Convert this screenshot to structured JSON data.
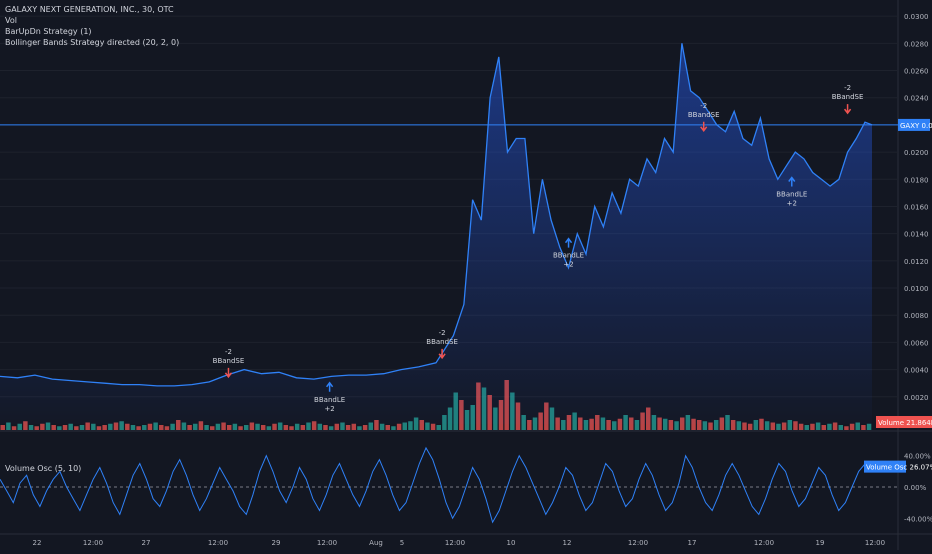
{
  "legend": {
    "symbol": "GALAXY NEXT GENERATION, INC., 30, OTC",
    "volume": "Vol",
    "strategy1": "BarUpDn Strategy (1)",
    "strategy2": "Bollinger Bands Strategy directed (20, 2, 0)"
  },
  "labels": {
    "last_price": "GAXY  0.0220",
    "volume_tag": "Volume  21.864M",
    "osc_tag": "Volume Osc  26.07%",
    "osc_title": "Volume Osc (5, 10)"
  },
  "colors": {
    "price_line": "#2f81f7",
    "up": "#26a69a",
    "down": "#ef5350",
    "background": "#131722",
    "grid": "#1e222d",
    "text": "#b2b5be"
  },
  "chart_data": [
    {
      "type": "area",
      "title": "GALAXY NEXT GENERATION, INC., 30, OTC",
      "x_ticks": [
        "22",
        "12:00",
        "27",
        "12:00",
        "29",
        "12:00",
        "Aug",
        "5",
        "12:00",
        "10",
        "12",
        "12:00",
        "17",
        "12:00",
        "19",
        "12:00",
        "24"
      ],
      "y_ticks": [
        "0.0020",
        "0.0040",
        "0.0060",
        "0.0080",
        "0.0100",
        "0.0120",
        "0.0140",
        "0.0160",
        "0.0180",
        "0.0200",
        "0.0220",
        "0.0240",
        "0.0260",
        "0.0280",
        "0.0300"
      ],
      "ylim": [
        0.0,
        0.0306
      ],
      "last_value": 0.022,
      "series": [
        {
          "x": [
            0,
            0.02,
            0.04,
            0.06,
            0.08,
            0.1,
            0.12,
            0.14,
            0.16,
            0.18,
            0.2,
            0.22,
            0.24,
            0.26,
            0.28,
            0.3,
            0.32,
            0.34,
            0.36,
            0.38,
            0.4,
            0.42,
            0.44,
            0.46,
            0.48,
            0.5,
            0.52,
            0.532,
            0.542,
            0.552,
            0.562,
            0.572,
            0.582,
            0.592,
            0.602,
            0.612,
            0.622,
            0.632,
            0.642,
            0.652,
            0.662,
            0.672,
            0.682,
            0.692,
            0.702,
            0.712,
            0.722,
            0.732,
            0.742,
            0.752,
            0.762,
            0.772,
            0.782,
            0.792,
            0.802,
            0.812,
            0.822,
            0.832,
            0.842,
            0.852,
            0.862,
            0.872,
            0.882,
            0.892,
            0.902,
            0.912,
            0.922,
            0.932,
            0.942,
            0.952,
            0.962,
            0.972,
            0.982,
            0.992,
            1.0
          ],
          "values": [
            0.0035,
            0.0034,
            0.0036,
            0.0033,
            0.0032,
            0.0031,
            0.003,
            0.0029,
            0.0029,
            0.0028,
            0.0028,
            0.0029,
            0.0031,
            0.0036,
            0.004,
            0.0037,
            0.0038,
            0.0034,
            0.0033,
            0.0035,
            0.0036,
            0.0036,
            0.0037,
            0.004,
            0.0042,
            0.0045,
            0.0065,
            0.0088,
            0.0165,
            0.015,
            0.024,
            0.027,
            0.02,
            0.021,
            0.021,
            0.014,
            0.018,
            0.015,
            0.013,
            0.0115,
            0.014,
            0.0125,
            0.016,
            0.0145,
            0.017,
            0.0155,
            0.018,
            0.0175,
            0.0195,
            0.0185,
            0.021,
            0.02,
            0.028,
            0.0245,
            0.024,
            0.023,
            0.022,
            0.0215,
            0.023,
            0.021,
            0.0205,
            0.0225,
            0.0195,
            0.018,
            0.019,
            0.02,
            0.0195,
            0.0185,
            0.018,
            0.0175,
            0.018,
            0.02,
            0.021,
            0.0222,
            0.022
          ]
        }
      ],
      "annotations": [
        {
          "text": "-2",
          "text2": "BBandSE",
          "type": "short",
          "x": 0.262,
          "price": 0.0031
        },
        {
          "text": "BBandLE",
          "text2": "+2",
          "type": "long",
          "x": 0.378,
          "price": 0.0034
        },
        {
          "text": "-2",
          "text2": "BBandSE",
          "type": "short",
          "x": 0.507,
          "price": 0.0045
        },
        {
          "text": "BBandLE",
          "text2": "+2",
          "type": "long",
          "x": 0.652,
          "price": 0.014
        },
        {
          "text": "-2",
          "text2": "BBandSE",
          "type": "short",
          "x": 0.807,
          "price": 0.0212
        },
        {
          "text": "BBandLE",
          "text2": "+2",
          "type": "long",
          "x": 0.908,
          "price": 0.0185
        },
        {
          "text": "-2",
          "text2": "BBandSE",
          "type": "short",
          "x": 0.972,
          "price": 0.0225
        }
      ]
    },
    {
      "type": "bar",
      "title": "Vol",
      "values": [
        4,
        6,
        3,
        5,
        7,
        4,
        3,
        5,
        6,
        4,
        3,
        4,
        5,
        3,
        4,
        6,
        5,
        3,
        4,
        5,
        6,
        7,
        5,
        4,
        3,
        4,
        5,
        6,
        4,
        3,
        5,
        8,
        6,
        4,
        5,
        7,
        4,
        3,
        5,
        6,
        4,
        5,
        3,
        4,
        6,
        5,
        4,
        3,
        5,
        6,
        4,
        3,
        5,
        4,
        6,
        7,
        5,
        4,
        3,
        5,
        6,
        4,
        5,
        3,
        4,
        6,
        8,
        5,
        4,
        3,
        5,
        6,
        7,
        10,
        8,
        6,
        5,
        4,
        12,
        18,
        30,
        24,
        16,
        20,
        38,
        34,
        28,
        18,
        24,
        40,
        30,
        22,
        12,
        8,
        10,
        14,
        22,
        18,
        10,
        8,
        12,
        14,
        10,
        8,
        9,
        12,
        10,
        8,
        7,
        9,
        12,
        10,
        8,
        14,
        18,
        12,
        10,
        9,
        8,
        7,
        10,
        12,
        9,
        8,
        7,
        6,
        8,
        10,
        12,
        8,
        7,
        6,
        5,
        8,
        9,
        7,
        6,
        5,
        6,
        8,
        7,
        5,
        4,
        5,
        6,
        4,
        5,
        6,
        4,
        3,
        5,
        6,
        4,
        5
      ],
      "up_flags": [
        0,
        1,
        0,
        1,
        0,
        1,
        0,
        0,
        1,
        0,
        1,
        0,
        1,
        0,
        1,
        0,
        1,
        0,
        0,
        1,
        0,
        1,
        0,
        1,
        0,
        1,
        0,
        1,
        0,
        0,
        1,
        0,
        1,
        0,
        1,
        0,
        1,
        0,
        1,
        0,
        0,
        1,
        0,
        1,
        0,
        1,
        0,
        1,
        0,
        1,
        0,
        0,
        1,
        0,
        1,
        0,
        1,
        0,
        1,
        0,
        1,
        0,
        0,
        1,
        0,
        1,
        0,
        1,
        0,
        1,
        0,
        1,
        1,
        1,
        0,
        1,
        0,
        1,
        1,
        1,
        1,
        0,
        1,
        1,
        0,
        1,
        0,
        1,
        0,
        0,
        1,
        0,
        1,
        0,
        1,
        0,
        0,
        1,
        0,
        1,
        0,
        1,
        0,
        1,
        0,
        0,
        1,
        0,
        1,
        0,
        1,
        0,
        1,
        0,
        0,
        1,
        0,
        1,
        0,
        1,
        0,
        1,
        0,
        0,
        1,
        0,
        1,
        0,
        1,
        0,
        1,
        0,
        0,
        1,
        0,
        1,
        0,
        1,
        0,
        1,
        0,
        0,
        1,
        0,
        1,
        0,
        1,
        0,
        1,
        0,
        0,
        1,
        0,
        1
      ]
    },
    {
      "type": "line",
      "title": "Volume Osc (5, 10)",
      "y_ticks": [
        "40.00%",
        "0.00%",
        "-40.00%"
      ],
      "ylim": [
        -55,
        55
      ],
      "last_value": 26.07,
      "values": [
        10,
        -5,
        -20,
        5,
        15,
        -10,
        -25,
        -5,
        10,
        20,
        0,
        -15,
        -30,
        -10,
        10,
        25,
        5,
        -20,
        -35,
        -10,
        15,
        30,
        10,
        -15,
        -25,
        -5,
        20,
        35,
        15,
        -10,
        -30,
        -15,
        5,
        25,
        10,
        -5,
        -25,
        -35,
        -10,
        20,
        40,
        20,
        -5,
        -20,
        0,
        25,
        10,
        -15,
        -30,
        -10,
        15,
        30,
        10,
        -10,
        -25,
        -5,
        20,
        35,
        15,
        -10,
        -30,
        -20,
        5,
        30,
        50,
        35,
        10,
        -20,
        -40,
        -25,
        0,
        25,
        10,
        -15,
        -45,
        -30,
        -5,
        20,
        40,
        25,
        5,
        -15,
        -35,
        -20,
        0,
        25,
        15,
        -10,
        -30,
        -20,
        5,
        30,
        20,
        -5,
        -25,
        -15,
        10,
        30,
        15,
        -10,
        -30,
        -20,
        5,
        40,
        25,
        0,
        -20,
        -30,
        -10,
        15,
        30,
        15,
        -5,
        -25,
        -35,
        -15,
        10,
        30,
        20,
        -5,
        -25,
        -15,
        5,
        25,
        15,
        -10,
        -30,
        -20,
        0,
        20,
        30,
        26
      ]
    }
  ]
}
